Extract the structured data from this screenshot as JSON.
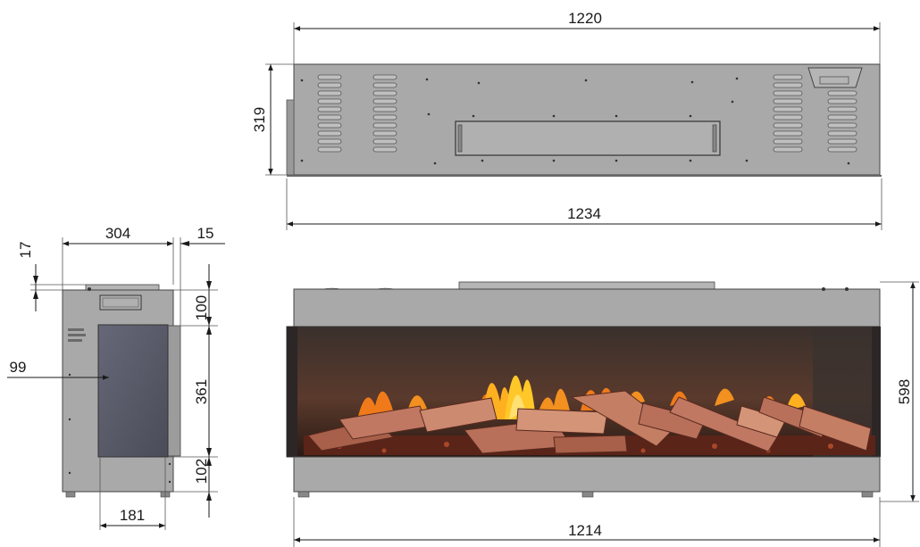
{
  "dimensions": {
    "top_view_width": "1220",
    "top_view_depth": "319",
    "top_view_overall_width": "1234",
    "side_depth": "304",
    "side_offset_right": "15",
    "side_offset_top": "17",
    "side_top_panel": "100",
    "side_glass_height": "361",
    "side_bottom_panel": "102",
    "side_glass_inset": "99",
    "side_feet_spacing": "181",
    "front_height": "598",
    "front_feet_spacing": "1214"
  },
  "colors": {
    "body_gray": "#a7a7a7",
    "body_dark": "#8a8a8a",
    "line": "#1a1a1a",
    "glass": "#5a5c68",
    "flame_orange": "#f07a1a",
    "flame_yellow": "#ffc828",
    "log_brown": "#b8705a"
  }
}
